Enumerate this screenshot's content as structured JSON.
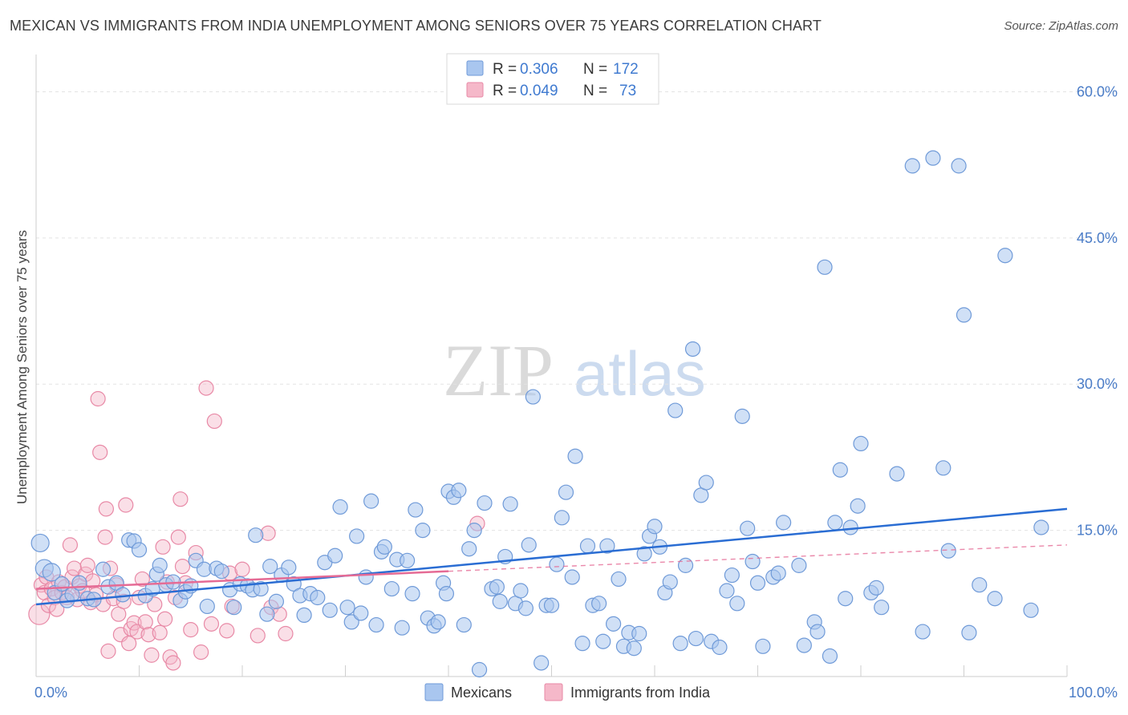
{
  "title": "MEXICAN VS IMMIGRANTS FROM INDIA UNEMPLOYMENT AMONG SENIORS OVER 75 YEARS CORRELATION CHART",
  "source": "Source: ZipAtlas.com",
  "watermark": {
    "zip": "ZIP",
    "atlas": "atlas"
  },
  "colors": {
    "mexicans_fill": "#a9c6ef",
    "mexicans_stroke": "#6f9ad8",
    "mexicans_line": "#2a6dd3",
    "india_fill": "#f5b8c9",
    "india_stroke": "#e889a6",
    "india_line": "#e56b95",
    "grid": "#e3e3e3",
    "axis_label": "#4a7cc7"
  },
  "legend": {
    "rows": [
      {
        "r_label": "R =",
        "r_value": "0.306",
        "n_label": "N =",
        "n_value": "172"
      },
      {
        "r_label": "R =",
        "r_value": "0.049",
        "n_label": "N =",
        "n_value": "73"
      }
    ]
  },
  "chart_data": {
    "type": "scatter",
    "title": "MEXICAN VS IMMIGRANTS FROM INDIA UNEMPLOYMENT AMONG SENIORS OVER 75 YEARS CORRELATION CHART",
    "xlabel": "",
    "ylabel": "Unemployment Among Seniors over 75 years",
    "xlim": [
      0,
      100
    ],
    "ylim": [
      0,
      63
    ],
    "x_tick_labels": [
      {
        "value": 0,
        "label": "0.0%"
      },
      {
        "value": 100,
        "label": "100.0%"
      }
    ],
    "y_tick_labels": [
      {
        "value": 15,
        "label": "15.0%"
      },
      {
        "value": 30,
        "label": "30.0%"
      },
      {
        "value": 45,
        "label": "45.0%"
      },
      {
        "value": 60,
        "label": "60.0%"
      }
    ],
    "x_gridlines": [
      10,
      20,
      30,
      40,
      50,
      60,
      70,
      80,
      90,
      100
    ],
    "y_gridlines": [
      15,
      30,
      45,
      60
    ],
    "grid": true,
    "legend_position": "top-center",
    "series": [
      {
        "name": "Mexicans",
        "r": 0.306,
        "n": 172,
        "trend": {
          "x": [
            0,
            100
          ],
          "y": [
            7.4,
            17.2
          ],
          "style": "solid"
        },
        "points": [
          [
            0.4,
            13.7
          ],
          [
            0.8,
            11.1
          ],
          [
            1.5,
            10.7
          ],
          [
            1.8,
            8.6
          ],
          [
            2.5,
            9.5
          ],
          [
            3.0,
            7.8
          ],
          [
            3.5,
            8.4
          ],
          [
            4.2,
            9.6
          ],
          [
            5.0,
            8.0
          ],
          [
            5.6,
            7.9
          ],
          [
            6.5,
            11.0
          ],
          [
            7.0,
            9.2
          ],
          [
            7.8,
            9.6
          ],
          [
            8.4,
            8.4
          ],
          [
            9.0,
            14.0
          ],
          [
            9.5,
            13.9
          ],
          [
            10.0,
            13.0
          ],
          [
            10.6,
            8.3
          ],
          [
            11.3,
            9.0
          ],
          [
            11.7,
            10.5
          ],
          [
            12.0,
            11.4
          ],
          [
            12.6,
            9.4
          ],
          [
            13.3,
            9.7
          ],
          [
            14.0,
            7.8
          ],
          [
            14.5,
            8.7
          ],
          [
            15.0,
            9.3
          ],
          [
            15.5,
            11.9
          ],
          [
            16.3,
            11.0
          ],
          [
            16.6,
            7.2
          ],
          [
            17.5,
            11.1
          ],
          [
            18.0,
            10.8
          ],
          [
            18.8,
            8.9
          ],
          [
            19.2,
            7.1
          ],
          [
            19.8,
            9.5
          ],
          [
            20.5,
            9.3
          ],
          [
            21.0,
            8.9
          ],
          [
            21.3,
            14.5
          ],
          [
            21.8,
            9.0
          ],
          [
            22.4,
            6.4
          ],
          [
            22.7,
            11.3
          ],
          [
            23.3,
            7.7
          ],
          [
            23.8,
            10.4
          ],
          [
            24.5,
            11.2
          ],
          [
            25.0,
            9.5
          ],
          [
            25.6,
            8.3
          ],
          [
            26.0,
            6.3
          ],
          [
            26.6,
            8.5
          ],
          [
            27.3,
            8.1
          ],
          [
            28.0,
            11.7
          ],
          [
            28.5,
            6.8
          ],
          [
            29.0,
            12.4
          ],
          [
            29.5,
            17.4
          ],
          [
            30.2,
            7.1
          ],
          [
            30.6,
            5.6
          ],
          [
            31.1,
            14.4
          ],
          [
            31.5,
            6.5
          ],
          [
            32.0,
            10.2
          ],
          [
            32.5,
            18.0
          ],
          [
            33.0,
            5.3
          ],
          [
            33.5,
            12.8
          ],
          [
            33.8,
            13.3
          ],
          [
            34.5,
            9.0
          ],
          [
            35.0,
            12.0
          ],
          [
            35.5,
            5.0
          ],
          [
            36.0,
            11.9
          ],
          [
            36.5,
            8.5
          ],
          [
            36.8,
            17.1
          ],
          [
            37.5,
            15.0
          ],
          [
            38.0,
            6.0
          ],
          [
            38.6,
            5.2
          ],
          [
            39.0,
            5.6
          ],
          [
            39.5,
            9.6
          ],
          [
            39.8,
            8.5
          ],
          [
            40.0,
            19.0
          ],
          [
            40.5,
            18.4
          ],
          [
            41.0,
            19.1
          ],
          [
            41.5,
            5.3
          ],
          [
            42.0,
            13.1
          ],
          [
            42.5,
            15.0
          ],
          [
            43.0,
            0.7
          ],
          [
            43.5,
            17.8
          ],
          [
            44.2,
            9.0
          ],
          [
            44.7,
            9.2
          ],
          [
            45.0,
            7.7
          ],
          [
            45.5,
            12.3
          ],
          [
            46.0,
            17.7
          ],
          [
            46.5,
            7.5
          ],
          [
            47.0,
            8.8
          ],
          [
            47.5,
            7.0
          ],
          [
            47.8,
            13.5
          ],
          [
            48.2,
            28.7
          ],
          [
            49.0,
            1.4
          ],
          [
            49.5,
            7.3
          ],
          [
            50.0,
            7.3
          ],
          [
            50.5,
            11.5
          ],
          [
            51.0,
            16.3
          ],
          [
            51.4,
            18.9
          ],
          [
            52.0,
            10.2
          ],
          [
            52.3,
            22.6
          ],
          [
            53.0,
            3.4
          ],
          [
            53.5,
            13.4
          ],
          [
            54.0,
            7.3
          ],
          [
            54.6,
            7.5
          ],
          [
            55.0,
            3.6
          ],
          [
            55.4,
            13.4
          ],
          [
            56.0,
            5.4
          ],
          [
            56.5,
            10.0
          ],
          [
            57.0,
            3.1
          ],
          [
            57.5,
            4.5
          ],
          [
            58.0,
            2.9
          ],
          [
            58.5,
            4.4
          ],
          [
            59.0,
            12.6
          ],
          [
            59.5,
            14.4
          ],
          [
            60.0,
            15.4
          ],
          [
            60.5,
            13.3
          ],
          [
            61.0,
            8.6
          ],
          [
            61.5,
            9.7
          ],
          [
            62.0,
            27.3
          ],
          [
            62.5,
            3.4
          ],
          [
            63.0,
            11.4
          ],
          [
            63.7,
            33.6
          ],
          [
            64.0,
            3.9
          ],
          [
            64.5,
            18.6
          ],
          [
            65.0,
            19.9
          ],
          [
            65.5,
            3.6
          ],
          [
            66.3,
            3.0
          ],
          [
            67.0,
            8.8
          ],
          [
            67.5,
            10.4
          ],
          [
            68.0,
            7.5
          ],
          [
            68.5,
            26.7
          ],
          [
            69.0,
            15.2
          ],
          [
            69.5,
            11.8
          ],
          [
            70.0,
            9.6
          ],
          [
            70.5,
            3.1
          ],
          [
            71.5,
            10.2
          ],
          [
            72.0,
            10.6
          ],
          [
            72.5,
            15.8
          ],
          [
            74.0,
            11.4
          ],
          [
            74.5,
            3.2
          ],
          [
            75.5,
            5.6
          ],
          [
            75.8,
            4.6
          ],
          [
            76.5,
            42.0
          ],
          [
            77.0,
            2.1
          ],
          [
            77.5,
            15.8
          ],
          [
            78.0,
            21.2
          ],
          [
            78.5,
            8.0
          ],
          [
            79.0,
            15.3
          ],
          [
            79.7,
            17.5
          ],
          [
            80.0,
            23.9
          ],
          [
            81.0,
            8.6
          ],
          [
            81.5,
            9.1
          ],
          [
            82.0,
            7.1
          ],
          [
            83.5,
            20.8
          ],
          [
            85.0,
            52.4
          ],
          [
            86.0,
            4.6
          ],
          [
            87.0,
            53.2
          ],
          [
            88.0,
            21.4
          ],
          [
            88.5,
            12.9
          ],
          [
            89.5,
            52.4
          ],
          [
            90.0,
            37.1
          ],
          [
            90.5,
            4.5
          ],
          [
            91.5,
            9.4
          ],
          [
            93.0,
            8.0
          ],
          [
            94.0,
            43.2
          ],
          [
            96.5,
            6.8
          ],
          [
            97.5,
            15.3
          ]
        ]
      },
      {
        "name": "Immigrants from India",
        "r": 0.049,
        "n": 73,
        "trend": {
          "x": [
            0,
            40,
            100
          ],
          "y": [
            9.0,
            10.8,
            13.5
          ],
          "style_segments": [
            "solid",
            "dashed"
          ]
        },
        "points": [
          [
            0.3,
            6.4
          ],
          [
            0.5,
            9.4
          ],
          [
            0.8,
            8.6
          ],
          [
            1.0,
            10.2
          ],
          [
            1.2,
            7.3
          ],
          [
            1.5,
            9.0
          ],
          [
            1.8,
            8.1
          ],
          [
            2.0,
            6.9
          ],
          [
            2.2,
            9.7
          ],
          [
            2.5,
            8.6
          ],
          [
            2.8,
            9.2
          ],
          [
            3.0,
            8.1
          ],
          [
            3.3,
            13.5
          ],
          [
            3.5,
            10.2
          ],
          [
            3.7,
            11.1
          ],
          [
            4.0,
            7.9
          ],
          [
            4.2,
            9.3
          ],
          [
            4.5,
            8.8
          ],
          [
            4.8,
            10.5
          ],
          [
            5.0,
            11.4
          ],
          [
            5.3,
            7.6
          ],
          [
            5.5,
            9.8
          ],
          [
            5.8,
            8.4
          ],
          [
            6.0,
            28.5
          ],
          [
            6.2,
            23.0
          ],
          [
            6.5,
            7.4
          ],
          [
            6.7,
            14.3
          ],
          [
            6.8,
            17.2
          ],
          [
            7.0,
            2.6
          ],
          [
            7.2,
            11.1
          ],
          [
            7.5,
            8.0
          ],
          [
            7.8,
            9.4
          ],
          [
            8.0,
            6.4
          ],
          [
            8.2,
            4.3
          ],
          [
            8.5,
            7.7
          ],
          [
            8.7,
            17.6
          ],
          [
            9.0,
            3.4
          ],
          [
            9.2,
            4.9
          ],
          [
            9.5,
            5.5
          ],
          [
            9.8,
            4.6
          ],
          [
            10.0,
            8.1
          ],
          [
            10.3,
            10.0
          ],
          [
            10.6,
            5.6
          ],
          [
            10.9,
            4.3
          ],
          [
            11.2,
            2.2
          ],
          [
            11.5,
            7.4
          ],
          [
            12.0,
            4.5
          ],
          [
            12.3,
            13.3
          ],
          [
            12.5,
            5.9
          ],
          [
            12.7,
            9.7
          ],
          [
            13.0,
            2.0
          ],
          [
            13.3,
            1.4
          ],
          [
            13.5,
            8.1
          ],
          [
            13.8,
            14.3
          ],
          [
            14.0,
            18.2
          ],
          [
            14.2,
            11.3
          ],
          [
            14.5,
            9.6
          ],
          [
            15.0,
            4.8
          ],
          [
            15.5,
            12.7
          ],
          [
            16.0,
            2.5
          ],
          [
            16.5,
            29.6
          ],
          [
            17.0,
            5.4
          ],
          [
            17.3,
            26.2
          ],
          [
            18.5,
            4.7
          ],
          [
            18.8,
            10.6
          ],
          [
            19.0,
            7.2
          ],
          [
            20.0,
            11.0
          ],
          [
            21.5,
            4.2
          ],
          [
            22.5,
            14.7
          ],
          [
            22.8,
            7.1
          ],
          [
            23.6,
            6.4
          ],
          [
            24.2,
            4.4
          ],
          [
            42.8,
            15.7
          ]
        ]
      }
    ]
  },
  "bottom_legend": {
    "items": [
      "Mexicans",
      "Immigrants from India"
    ]
  }
}
